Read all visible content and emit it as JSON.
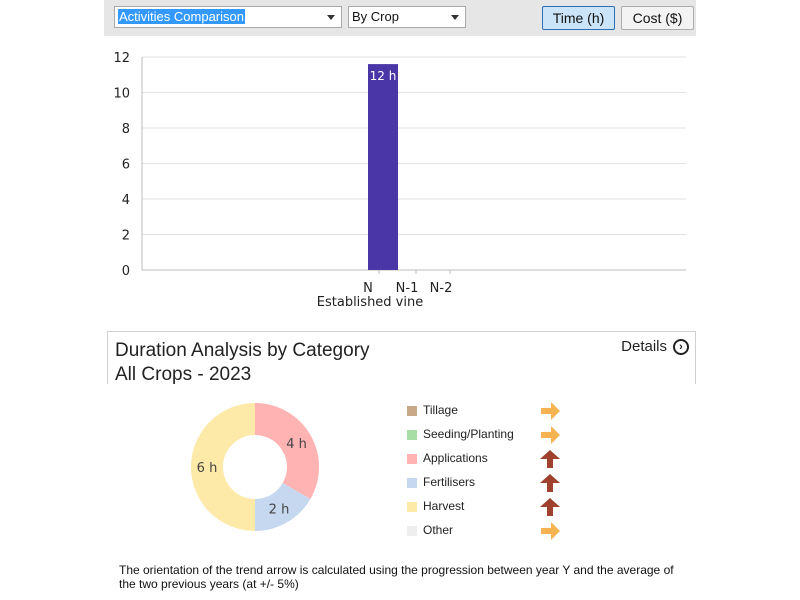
{
  "toolbar": {
    "report_select": "Activities Comparison",
    "group_select": "By Crop",
    "time_button": "Time (h)",
    "cost_button": "Cost ($)"
  },
  "chart_data": {
    "type": "bar",
    "categories": [
      "N",
      "N-1",
      "N-2"
    ],
    "values": [
      11.6,
      0,
      0
    ],
    "data_labels": [
      "12 h",
      "",
      ""
    ],
    "xlabel": "Established vine",
    "ylabel": "",
    "ylim": [
      0,
      12
    ],
    "yticks": [
      "0",
      "2",
      "4",
      "6",
      "8",
      "10",
      "12"
    ],
    "grid": true,
    "bar_color": "#4b36a8"
  },
  "analysis": {
    "title": "Duration Analysis by Category",
    "subtitle": "All Crops - 2023",
    "details_label": "Details",
    "details_icon": "chevron-right-circle-icon"
  },
  "donut_data": {
    "type": "pie",
    "slices": [
      {
        "name": "Applications",
        "value": 4,
        "label": "4 h",
        "color": "#ffb3b3"
      },
      {
        "name": "Fertilisers",
        "value": 2,
        "label": "2 h",
        "color": "#c6d8f0"
      },
      {
        "name": "Harvest",
        "value": 6,
        "label": "6 h",
        "color": "#fde9a8"
      }
    ]
  },
  "legend": [
    {
      "label": "Tillage",
      "color": "#c9a887",
      "trend": "right",
      "arrow_color": "#f6b352"
    },
    {
      "label": "Seeding/Planting",
      "color": "#a6dea6",
      "trend": "right",
      "arrow_color": "#f6b352"
    },
    {
      "label": "Applications",
      "color": "#ffb3b3",
      "trend": "up",
      "arrow_color": "#a0412d"
    },
    {
      "label": "Fertilisers",
      "color": "#c6d8f0",
      "trend": "up",
      "arrow_color": "#a0412d"
    },
    {
      "label": "Harvest",
      "color": "#fde9a8",
      "trend": "up",
      "arrow_color": "#a0412d"
    },
    {
      "label": "Other",
      "color": "#eeeeee",
      "trend": "right",
      "arrow_color": "#f6b352"
    }
  ],
  "footnote": "The orientation of the trend arrow is calculated using the progression between year Y and the average of the two previous years (at +/- 5%)"
}
